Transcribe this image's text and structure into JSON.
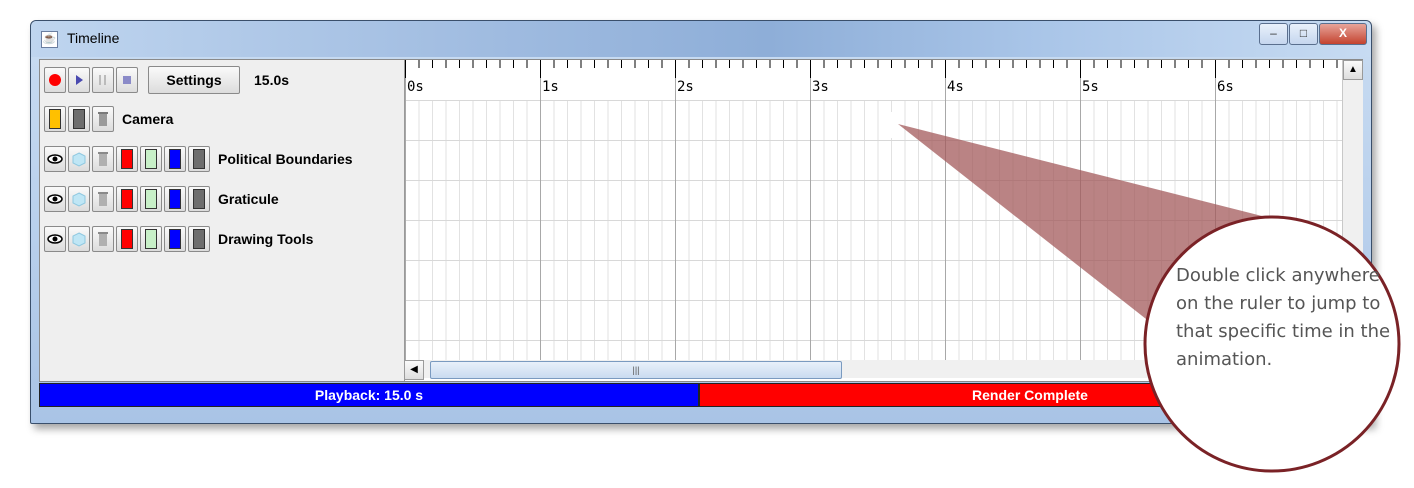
{
  "window": {
    "title": "Timeline",
    "controls": [
      "minimize",
      "maximize",
      "close"
    ]
  },
  "toolbar": {
    "settings_label": "Settings",
    "duration": "15.0s",
    "buttons": [
      "record",
      "play",
      "pause",
      "stop"
    ]
  },
  "camera": {
    "label": "Camera"
  },
  "layers": [
    {
      "label": "Political Boundaries"
    },
    {
      "label": "Graticule"
    },
    {
      "label": "Drawing Tools"
    }
  ],
  "ruler": {
    "ticks": [
      "0s",
      "1s",
      "2s",
      "3s",
      "4s",
      "5s",
      "6s"
    ]
  },
  "status": {
    "playback": "Playback: 15.0 s",
    "render": "Render Complete"
  },
  "callout": {
    "text": "Double click anywhere on the ruler to jump to that specific time in the animation."
  },
  "colors": {
    "record": "#ff0000",
    "playback_bar": "#0000ff",
    "render_bar": "#ff0000",
    "callout_fill": "#a3595b",
    "callout_border": "#7a2226"
  }
}
